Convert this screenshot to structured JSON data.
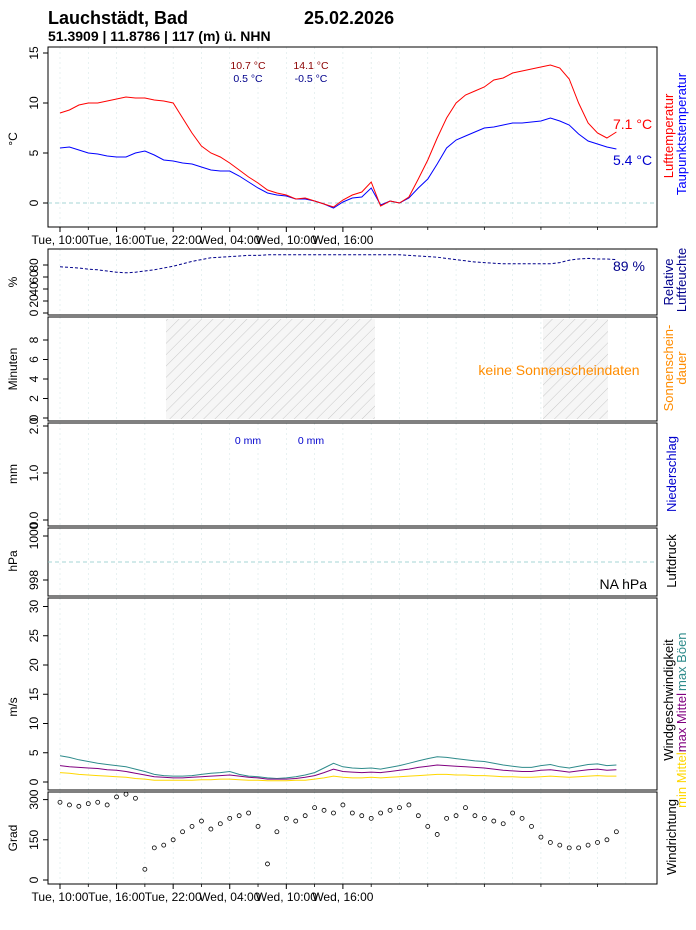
{
  "header": {
    "station": "Lauchstädt, Bad",
    "date": "25.02.2026",
    "coords": "51.3909 | 11.8786 | 117 (m) ü. NHN"
  },
  "x_tick_labels": [
    "Tue, 10:00",
    "Tue, 16:00",
    "Tue, 22:00",
    "Wed, 04:00",
    "Wed, 10:00",
    "Wed, 16:00"
  ],
  "colors": {
    "temp": "#ff0000",
    "dew": "#0000ff",
    "humidity": "#00008b",
    "sun": "#ff8c00",
    "rain": "#0000cd",
    "gust": "#2e8b8b",
    "maxmean": "#800080",
    "minmean": "#ffd700"
  },
  "panels": {
    "temperature": {
      "ylabel": "°C",
      "side_label_1": "Lufttemperatur",
      "side_label_2": "Taupunktstemperatur",
      "day1_max": "10.7 °C",
      "day1_min": "0.5 °C",
      "day2_max": "14.1 °C",
      "day2_min": "-0.5 °C",
      "current_temp": "7.1 °C",
      "current_dew": "5.4 °C",
      "yticks": [
        "0",
        "5",
        "10",
        "15"
      ]
    },
    "humidity": {
      "ylabel": "%",
      "side_label_1": "Relative",
      "side_label_2": "Luftfeuchte",
      "current": "89 %",
      "yticks": [
        "0",
        "20",
        "40",
        "60",
        "80"
      ]
    },
    "sunshine": {
      "ylabel": "Minuten",
      "side_label_1": "Sonnenschein-",
      "side_label_2": "dauer",
      "nodata": "keine Sonnenscheindaten",
      "yticks": [
        "0",
        "2",
        "4",
        "6",
        "8"
      ]
    },
    "precip": {
      "ylabel": "mm",
      "side_label": "Niederschlag",
      "day1_sum": "0 mm",
      "day2_sum": "0 mm",
      "yticks": [
        "0.0",
        "1.0",
        "2.0"
      ]
    },
    "pressure": {
      "ylabel": "hPa",
      "side_label": "Luftdruck",
      "current": "NA hPa",
      "yticks": [
        "998",
        "1000"
      ]
    },
    "wind": {
      "ylabel": "m/s",
      "side_label_1": "Windgeschwindigkeit",
      "side_label_2a": "max Mittel",
      "side_label_2b": "max Böen",
      "side_label_3": "min Mittel",
      "yticks": [
        "0",
        "5",
        "10",
        "15",
        "20",
        "25",
        "30"
      ]
    },
    "direction": {
      "ylabel": "Grad",
      "side_label": "Windrichtung",
      "yticks": [
        "0",
        "150",
        "300"
      ]
    }
  },
  "chart_data": [
    {
      "type": "line",
      "title": "",
      "xlabel": "",
      "ylabel": "°C",
      "ylim": [
        -2.5,
        16
      ],
      "x_hours": [
        0,
        1,
        2,
        3,
        4,
        5,
        6,
        7,
        8,
        9,
        10,
        11,
        12,
        13,
        14,
        15,
        16,
        17,
        18,
        19,
        20,
        21,
        22,
        23,
        24,
        25,
        26,
        27,
        28,
        29,
        30,
        31,
        32,
        33,
        34,
        35,
        36,
        37,
        38,
        39,
        40,
        41,
        42,
        43,
        44,
        45,
        46,
        47,
        48,
        49,
        50,
        51,
        52,
        53,
        54,
        55,
        56,
        57,
        58,
        59
      ],
      "series": [
        {
          "name": "Lufttemperatur",
          "values": [
            9.0,
            9.3,
            9.8,
            10.0,
            10.0,
            10.2,
            10.4,
            10.6,
            10.5,
            10.5,
            10.3,
            10.2,
            10.0,
            8.5,
            7.0,
            5.7,
            5.0,
            4.6,
            4.0,
            3.3,
            2.6,
            2.0,
            1.3,
            1.0,
            0.8,
            0.4,
            0.5,
            0.2,
            -0.1,
            -0.4,
            0.3,
            0.8,
            1.1,
            2.1,
            -0.3,
            0.2,
            0.0,
            0.6,
            2.4,
            4.3,
            6.5,
            8.5,
            10.0,
            10.8,
            11.2,
            11.6,
            12.3,
            12.5,
            13.0,
            13.2,
            13.4,
            13.6,
            13.8,
            13.5,
            12.4,
            10.0,
            8.0,
            7.0,
            6.5,
            7.1
          ]
        },
        {
          "name": "Taupunktstemperatur",
          "values": [
            5.5,
            5.6,
            5.3,
            5.0,
            4.9,
            4.7,
            4.6,
            4.6,
            5.0,
            5.2,
            4.8,
            4.3,
            4.2,
            4.0,
            3.9,
            3.6,
            3.3,
            3.2,
            3.2,
            2.7,
            2.1,
            1.5,
            1.0,
            0.8,
            0.7,
            0.4,
            0.4,
            0.2,
            -0.1,
            -0.5,
            0.1,
            0.5,
            0.6,
            1.5,
            -0.2,
            0.2,
            0.0,
            0.5,
            1.5,
            2.4,
            3.9,
            5.5,
            6.3,
            6.7,
            7.1,
            7.5,
            7.6,
            7.8,
            8.0,
            8.0,
            8.1,
            8.2,
            8.5,
            8.2,
            7.8,
            6.9,
            6.2,
            5.9,
            5.6,
            5.4
          ]
        }
      ]
    },
    {
      "type": "line",
      "title": "",
      "xlabel": "",
      "ylabel": "%",
      "ylim": [
        0,
        100
      ],
      "x_hours": [
        0,
        1,
        2,
        3,
        4,
        5,
        6,
        7,
        8,
        9,
        10,
        11,
        12,
        13,
        14,
        15,
        16,
        17,
        18,
        19,
        20,
        21,
        22,
        23,
        24,
        25,
        26,
        27,
        28,
        29,
        30,
        31,
        32,
        33,
        34,
        35,
        36,
        37,
        38,
        39,
        40,
        41,
        42,
        43,
        44,
        45,
        46,
        47,
        48,
        49,
        50,
        51,
        52,
        53,
        54,
        55,
        56,
        57,
        58,
        59
      ],
      "series": [
        {
          "name": "Relative Luftfeuchte",
          "values": [
            77,
            76,
            75,
            73,
            72,
            70,
            68,
            67,
            68,
            70,
            72,
            75,
            78,
            82,
            86,
            89,
            92,
            93,
            94,
            95,
            96,
            96,
            97,
            97,
            97,
            97,
            97,
            97,
            97,
            97,
            97,
            97,
            97,
            97,
            97,
            97,
            97,
            96,
            95,
            94,
            93,
            91,
            89,
            87,
            85,
            84,
            83,
            82,
            82,
            82,
            82,
            82,
            82,
            84,
            88,
            90,
            91,
            90,
            90,
            89
          ]
        }
      ]
    },
    {
      "type": "scatter",
      "title": "",
      "xlabel": "",
      "ylabel": "Grad",
      "ylim": [
        0,
        360
      ],
      "x_hours": [
        0,
        1,
        2,
        3,
        4,
        5,
        6,
        7,
        8,
        9,
        10,
        11,
        12,
        13,
        14,
        15,
        16,
        17,
        18,
        19,
        20,
        21,
        22,
        23,
        24,
        25,
        26,
        27,
        28,
        29,
        30,
        31,
        32,
        33,
        34,
        35,
        36,
        37,
        38,
        39,
        40,
        41,
        42,
        43,
        44,
        45,
        46,
        47,
        48,
        49,
        50,
        51,
        52,
        53,
        54,
        55,
        56,
        57,
        58,
        59
      ],
      "series": [
        {
          "name": "Windrichtung",
          "values": [
            290,
            280,
            275,
            285,
            290,
            280,
            310,
            320,
            305,
            40,
            120,
            130,
            150,
            180,
            200,
            220,
            190,
            210,
            230,
            240,
            250,
            200,
            60,
            180,
            230,
            220,
            240,
            270,
            260,
            250,
            280,
            250,
            240,
            230,
            250,
            260,
            270,
            280,
            240,
            200,
            170,
            230,
            240,
            270,
            240,
            230,
            220,
            210,
            250,
            230,
            200,
            160,
            140,
            130,
            120,
            120,
            130,
            140,
            150,
            180
          ]
        }
      ]
    },
    {
      "type": "line",
      "title": "",
      "xlabel": "",
      "ylabel": "m/s",
      "ylim": [
        0,
        31
      ],
      "x_hours": [
        0,
        1,
        2,
        3,
        4,
        5,
        6,
        7,
        8,
        9,
        10,
        11,
        12,
        13,
        14,
        15,
        16,
        17,
        18,
        19,
        20,
        21,
        22,
        23,
        24,
        25,
        26,
        27,
        28,
        29,
        30,
        31,
        32,
        33,
        34,
        35,
        36,
        37,
        38,
        39,
        40,
        41,
        42,
        43,
        44,
        45,
        46,
        47,
        48,
        49,
        50,
        51,
        52,
        53,
        54,
        55,
        56,
        57,
        58,
        59
      ],
      "series": [
        {
          "name": "max Böen",
          "values": [
            4.5,
            4.2,
            3.8,
            3.5,
            3.2,
            3.0,
            2.8,
            2.6,
            2.2,
            1.8,
            1.3,
            1.1,
            1.0,
            1.0,
            1.1,
            1.3,
            1.5,
            1.6,
            1.8,
            1.3,
            1.0,
            0.9,
            0.7,
            0.6,
            0.7,
            0.9,
            1.2,
            1.6,
            2.4,
            3.2,
            2.6,
            2.4,
            2.3,
            2.4,
            2.2,
            2.5,
            2.8,
            3.2,
            3.6,
            4.0,
            4.3,
            4.2,
            4.0,
            3.8,
            3.6,
            3.5,
            3.2,
            2.9,
            2.7,
            2.5,
            2.5,
            2.8,
            3.0,
            2.6,
            2.4,
            2.7,
            3.0,
            3.1,
            2.8,
            2.9
          ]
        },
        {
          "name": "max Mittel",
          "values": [
            2.8,
            2.6,
            2.5,
            2.4,
            2.3,
            2.1,
            2.0,
            1.8,
            1.5,
            1.2,
            0.9,
            0.8,
            0.7,
            0.7,
            0.8,
            0.9,
            1.0,
            1.1,
            1.2,
            1.0,
            0.8,
            0.7,
            0.5,
            0.5,
            0.5,
            0.6,
            0.8,
            1.1,
            1.6,
            2.2,
            1.8,
            1.7,
            1.6,
            1.7,
            1.6,
            1.8,
            2.0,
            2.2,
            2.5,
            2.7,
            2.9,
            2.8,
            2.7,
            2.6,
            2.5,
            2.4,
            2.2,
            2.0,
            1.9,
            1.8,
            1.8,
            2.0,
            2.1,
            1.9,
            1.7,
            1.9,
            2.1,
            2.2,
            2.0,
            2.1
          ]
        },
        {
          "name": "min Mittel",
          "values": [
            1.6,
            1.5,
            1.3,
            1.2,
            1.1,
            1.0,
            0.9,
            0.8,
            0.6,
            0.5,
            0.3,
            0.3,
            0.3,
            0.3,
            0.3,
            0.4,
            0.4,
            0.5,
            0.5,
            0.4,
            0.3,
            0.3,
            0.2,
            0.2,
            0.2,
            0.3,
            0.3,
            0.5,
            0.7,
            1.0,
            0.8,
            0.7,
            0.7,
            0.8,
            0.7,
            0.8,
            0.9,
            1.0,
            1.1,
            1.2,
            1.3,
            1.3,
            1.2,
            1.2,
            1.1,
            1.1,
            1.0,
            0.9,
            0.9,
            0.8,
            0.8,
            0.9,
            1.0,
            0.9,
            0.8,
            0.9,
            1.0,
            1.1,
            1.0,
            1.0
          ]
        }
      ]
    }
  ]
}
